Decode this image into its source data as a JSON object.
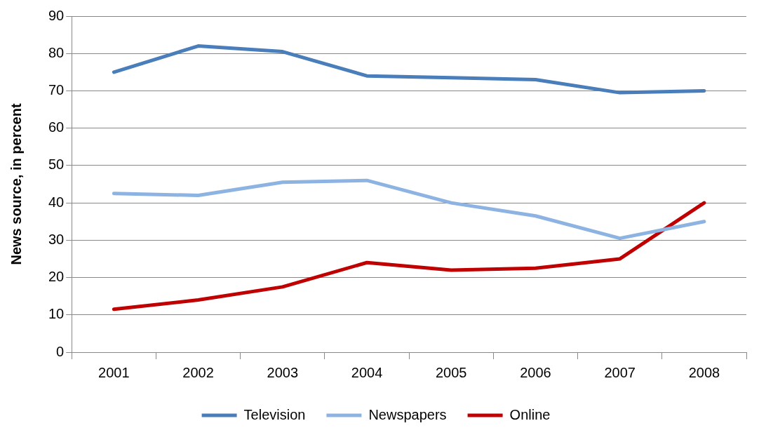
{
  "chart_data": {
    "type": "line",
    "ylabel": "News source, in percent",
    "categories": [
      "2001",
      "2002",
      "2003",
      "2004",
      "2005",
      "2006",
      "2007",
      "2008"
    ],
    "series": [
      {
        "name": "Television",
        "color": "#4a7ebb",
        "values": [
          75,
          82,
          80.5,
          74,
          73.5,
          73,
          69.5,
          70
        ]
      },
      {
        "name": "Newspapers",
        "color": "#8db3e2",
        "values": [
          42.5,
          42,
          45.5,
          46,
          40,
          36.5,
          30.5,
          35
        ]
      },
      {
        "name": "Online",
        "color": "#c00000",
        "values": [
          11.5,
          14,
          17.5,
          24,
          22,
          22.5,
          25,
          40
        ]
      }
    ],
    "ylim": [
      0,
      90
    ],
    "yticks": [
      0,
      10,
      20,
      30,
      40,
      50,
      60,
      70,
      80,
      90
    ],
    "grid": "y",
    "legend": "bottom",
    "marker": "none",
    "line_style": "solid"
  }
}
